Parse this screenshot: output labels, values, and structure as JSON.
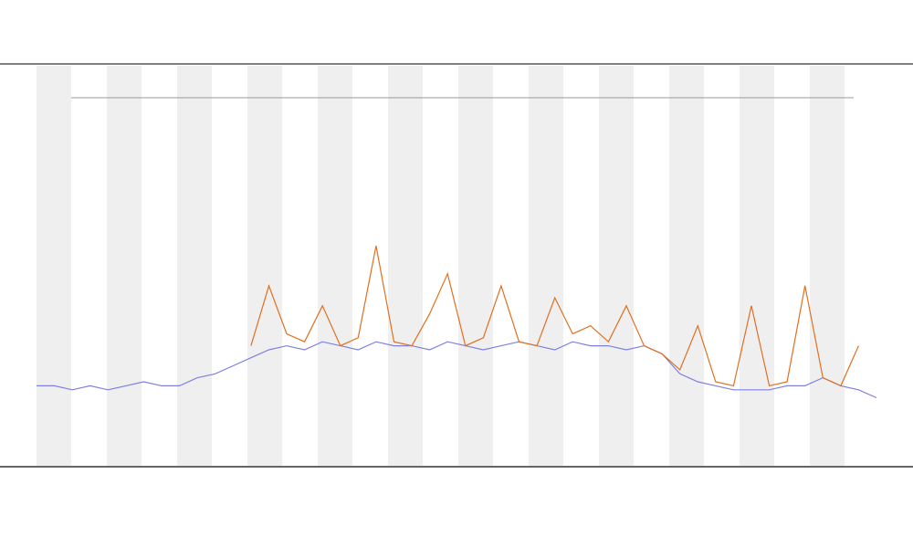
{
  "chart_data": {
    "type": "line",
    "categories": [
      null,
      null,
      null,
      null,
      null,
      null,
      null,
      null,
      null,
      null,
      null,
      null,
      null,
      null,
      null,
      null,
      null,
      null,
      null,
      null,
      null,
      null,
      null,
      null,
      null,
      null,
      null,
      null,
      null,
      null,
      null,
      null,
      null,
      null,
      null,
      null,
      null,
      null,
      null,
      null,
      null,
      null,
      null,
      null,
      null,
      null,
      null,
      null
    ],
    "ylim": [
      0,
      100
    ],
    "series": [
      {
        "color": "#8080e0",
        "values": [
          20,
          20,
          19,
          20,
          19,
          20,
          21,
          20,
          20,
          22,
          23,
          25,
          27,
          29,
          30,
          29,
          31,
          30,
          29,
          31,
          30,
          30,
          29,
          31,
          30,
          29,
          30,
          31,
          30,
          29,
          31,
          30,
          30,
          29,
          30,
          28,
          23,
          21,
          20,
          19,
          19,
          19,
          20,
          20,
          22,
          20,
          19,
          17
        ]
      },
      {
        "color": "#e07020",
        "values": [
          null,
          null,
          null,
          null,
          null,
          null,
          null,
          null,
          null,
          null,
          null,
          null,
          30,
          45,
          33,
          31,
          40,
          30,
          32,
          55,
          31,
          30,
          38,
          48,
          30,
          32,
          45,
          31,
          30,
          42,
          33,
          35,
          31,
          40,
          30,
          28,
          24,
          35,
          21,
          20,
          40,
          20,
          21,
          45,
          22,
          20,
          30,
          null
        ]
      }
    ]
  }
}
